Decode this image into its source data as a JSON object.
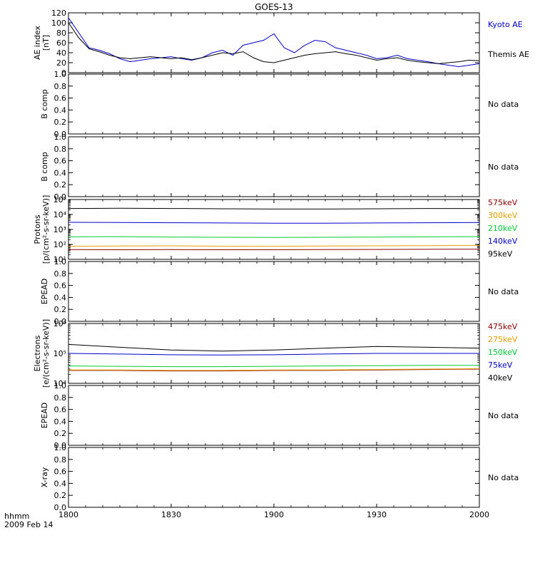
{
  "title": "GOES-13",
  "time_axis": {
    "label_line1": "hhmm",
    "label_line2": "2009 Feb 14",
    "ticks": [
      "1800",
      "1830",
      "1900",
      "1930",
      "2000"
    ],
    "range_hours": [
      18.0,
      20.0
    ]
  },
  "no_data_text": "No data",
  "colors": {
    "kyoto": "#0000cc",
    "themis": "#000000",
    "p575": "#8b0000",
    "p300": "#e6a000",
    "p210": "#00cc33",
    "p140": "#0000cc",
    "p95": "#000000"
  },
  "chart_data": [
    {
      "type": "line",
      "panel": "ae",
      "ylabel": [
        "AE index",
        "[nT]"
      ],
      "ylim": [
        0,
        120
      ],
      "yticks": [
        "0",
        "20",
        "40",
        "60",
        "80",
        "100",
        "120"
      ],
      "x": [
        18.0,
        18.05,
        18.1,
        18.15,
        18.2,
        18.25,
        18.3,
        18.35,
        18.4,
        18.45,
        18.5,
        18.55,
        18.6,
        18.65,
        18.7,
        18.75,
        18.8,
        18.85,
        18.9,
        18.95,
        19.0,
        19.05,
        19.1,
        19.15,
        19.2,
        19.25,
        19.3,
        19.35,
        19.4,
        19.45,
        19.5,
        19.55,
        19.6,
        19.65,
        19.7,
        19.75,
        19.8,
        19.85,
        19.9,
        19.95,
        20.0
      ],
      "series": [
        {
          "name": "Kyoto AE",
          "color_key": "kyoto",
          "values": [
            110,
            80,
            50,
            45,
            38,
            28,
            22,
            25,
            28,
            30,
            32,
            28,
            25,
            30,
            40,
            45,
            35,
            55,
            60,
            65,
            78,
            50,
            40,
            55,
            65,
            62,
            50,
            45,
            40,
            35,
            28,
            30,
            35,
            28,
            25,
            22,
            18,
            15,
            12,
            15,
            18
          ]
        },
        {
          "name": "Themis AE",
          "color_key": "themis",
          "values": [
            100,
            70,
            48,
            42,
            35,
            30,
            28,
            30,
            32,
            30,
            28,
            30,
            26,
            30,
            35,
            40,
            38,
            42,
            30,
            22,
            20,
            25,
            30,
            35,
            38,
            40,
            42,
            38,
            35,
            30,
            25,
            28,
            30,
            25,
            22,
            20,
            18,
            20,
            22,
            25,
            24
          ]
        }
      ]
    },
    {
      "type": "line",
      "panel": "b1",
      "ylabel": [
        "B comp"
      ],
      "ylim": [
        0,
        1
      ],
      "yticks": [
        "0.0",
        "0.2",
        "0.4",
        "0.6",
        "0.8",
        "1.0"
      ],
      "series": []
    },
    {
      "type": "line",
      "panel": "b2",
      "ylabel": [
        "B comp"
      ],
      "ylim": [
        0,
        1
      ],
      "yticks": [
        "0.0",
        "0.2",
        "0.4",
        "0.6",
        "0.8",
        "1.0"
      ],
      "series": []
    },
    {
      "type": "line",
      "panel": "protons",
      "ylabel": [
        "Protons",
        "[p/(cm²-s-sr-keV)]"
      ],
      "yscale": "log",
      "ylim": [
        10,
        100000
      ],
      "yticks": [
        "10¹",
        "10²",
        "10³",
        "10⁴",
        "10⁵"
      ],
      "x": [
        18.0,
        18.25,
        18.5,
        18.75,
        19.0,
        19.25,
        19.5,
        19.75,
        20.0
      ],
      "series": [
        {
          "name": "575keV",
          "color_key": "p575",
          "values": [
            45,
            44,
            45,
            44,
            44,
            45,
            46,
            47,
            48
          ]
        },
        {
          "name": "300keV",
          "color_key": "p300",
          "values": [
            75,
            78,
            80,
            76,
            75,
            78,
            80,
            82,
            85
          ]
        },
        {
          "name": "210keV",
          "color_key": "p210",
          "values": [
            320,
            330,
            310,
            300,
            290,
            300,
            310,
            320,
            330
          ]
        },
        {
          "name": "140keV",
          "color_key": "p140",
          "values": [
            3000,
            2900,
            2800,
            2700,
            2600,
            2600,
            2700,
            2800,
            2900
          ]
        },
        {
          "name": "95keV",
          "color_key": "p95",
          "values": [
            25000,
            26000,
            25000,
            24000,
            23000,
            23000,
            24000,
            25000,
            25000
          ]
        }
      ]
    },
    {
      "type": "line",
      "panel": "epead1",
      "ylabel": [
        "EPEAD"
      ],
      "ylim": [
        0,
        1
      ],
      "yticks": [
        "0.0",
        "0.2",
        "0.4",
        "0.6",
        "0.8",
        "1.0"
      ],
      "series": []
    },
    {
      "type": "line",
      "panel": "electrons",
      "ylabel": [
        "Electrons",
        "[e/(cm²-s-sr-keV)]"
      ],
      "yscale": "log",
      "ylim": [
        10000,
        1000000
      ],
      "yticks": [
        "10⁴",
        "10⁵",
        "10⁶"
      ],
      "x": [
        18.0,
        18.25,
        18.5,
        18.75,
        19.0,
        19.25,
        19.5,
        19.75,
        20.0
      ],
      "series": [
        {
          "name": "475keV",
          "color_key": "p575",
          "values": [
            27000,
            27000,
            26000,
            26000,
            27000,
            27000,
            28000,
            29000,
            30000
          ]
        },
        {
          "name": "275keV",
          "color_key": "p300",
          "values": [
            28000,
            28000,
            27000,
            27000,
            28000,
            28000,
            29000,
            30000,
            31000
          ]
        },
        {
          "name": "150keV",
          "color_key": "p210",
          "values": [
            38000,
            37000,
            36000,
            36000,
            37000,
            38000,
            39000,
            40000,
            40000
          ]
        },
        {
          "name": "75keV",
          "color_key": "p140",
          "values": [
            100000,
            95000,
            90000,
            88000,
            90000,
            95000,
            100000,
            100000,
            100000
          ]
        },
        {
          "name": "40keV",
          "color_key": "p95",
          "values": [
            200000,
            160000,
            130000,
            120000,
            130000,
            150000,
            170000,
            160000,
            150000
          ]
        }
      ]
    },
    {
      "type": "line",
      "panel": "epead2",
      "ylabel": [
        "EPEAD"
      ],
      "ylim": [
        0,
        1
      ],
      "yticks": [
        "0.0",
        "0.2",
        "0.4",
        "0.6",
        "0.8",
        "1.0"
      ],
      "series": []
    },
    {
      "type": "line",
      "panel": "xray",
      "ylabel": [
        "X-ray"
      ],
      "ylim": [
        0,
        1
      ],
      "yticks": [
        "0.0",
        "0.2",
        "0.4",
        "0.6",
        "0.8",
        "1.0"
      ],
      "series": []
    }
  ]
}
